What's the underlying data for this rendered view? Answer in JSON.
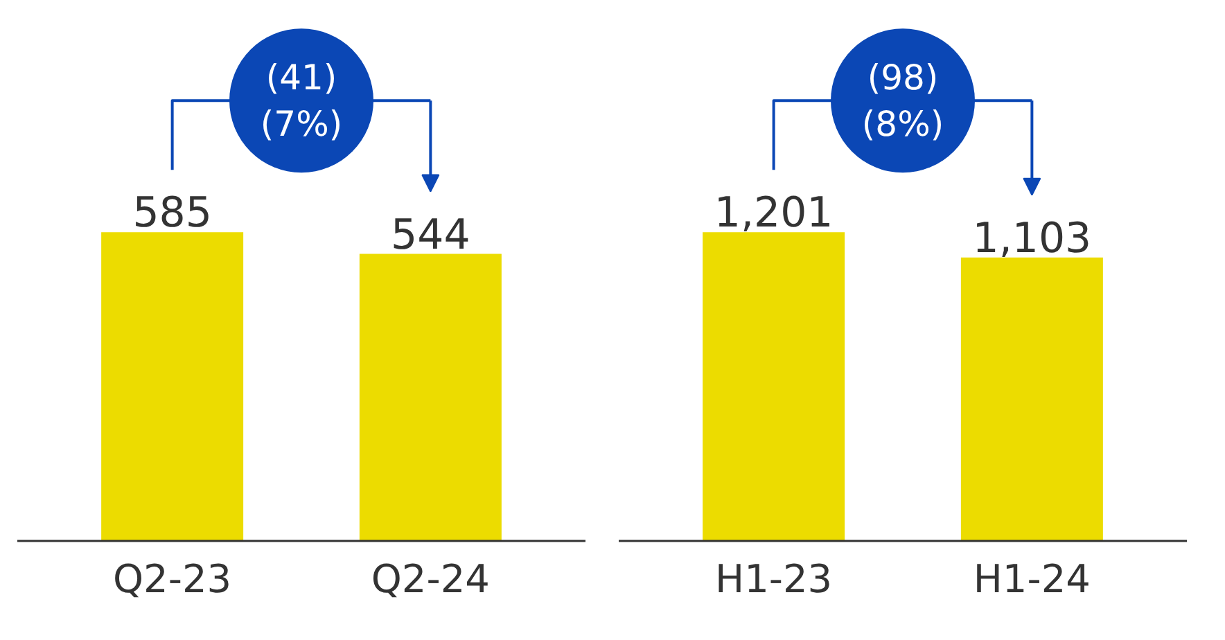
{
  "chart_data": [
    {
      "type": "bar",
      "categories": [
        "Q2-23",
        "Q2-24"
      ],
      "values": [
        585,
        544
      ],
      "color": "#ecdc00",
      "value_labels": [
        "585",
        "544"
      ],
      "annotations": [
        "(41)\n(7%)"
      ],
      "tick_labels": "x",
      "grid": false
    },
    {
      "type": "bar",
      "categories": [
        "H1-23",
        "H1-24"
      ],
      "values": [
        1201,
        1103
      ],
      "color": "#ecdc00",
      "value_labels": [
        "1,201",
        "1,103"
      ],
      "annotations": [
        "(98)\n(8%)"
      ],
      "tick_labels": "x",
      "grid": false
    }
  ]
}
